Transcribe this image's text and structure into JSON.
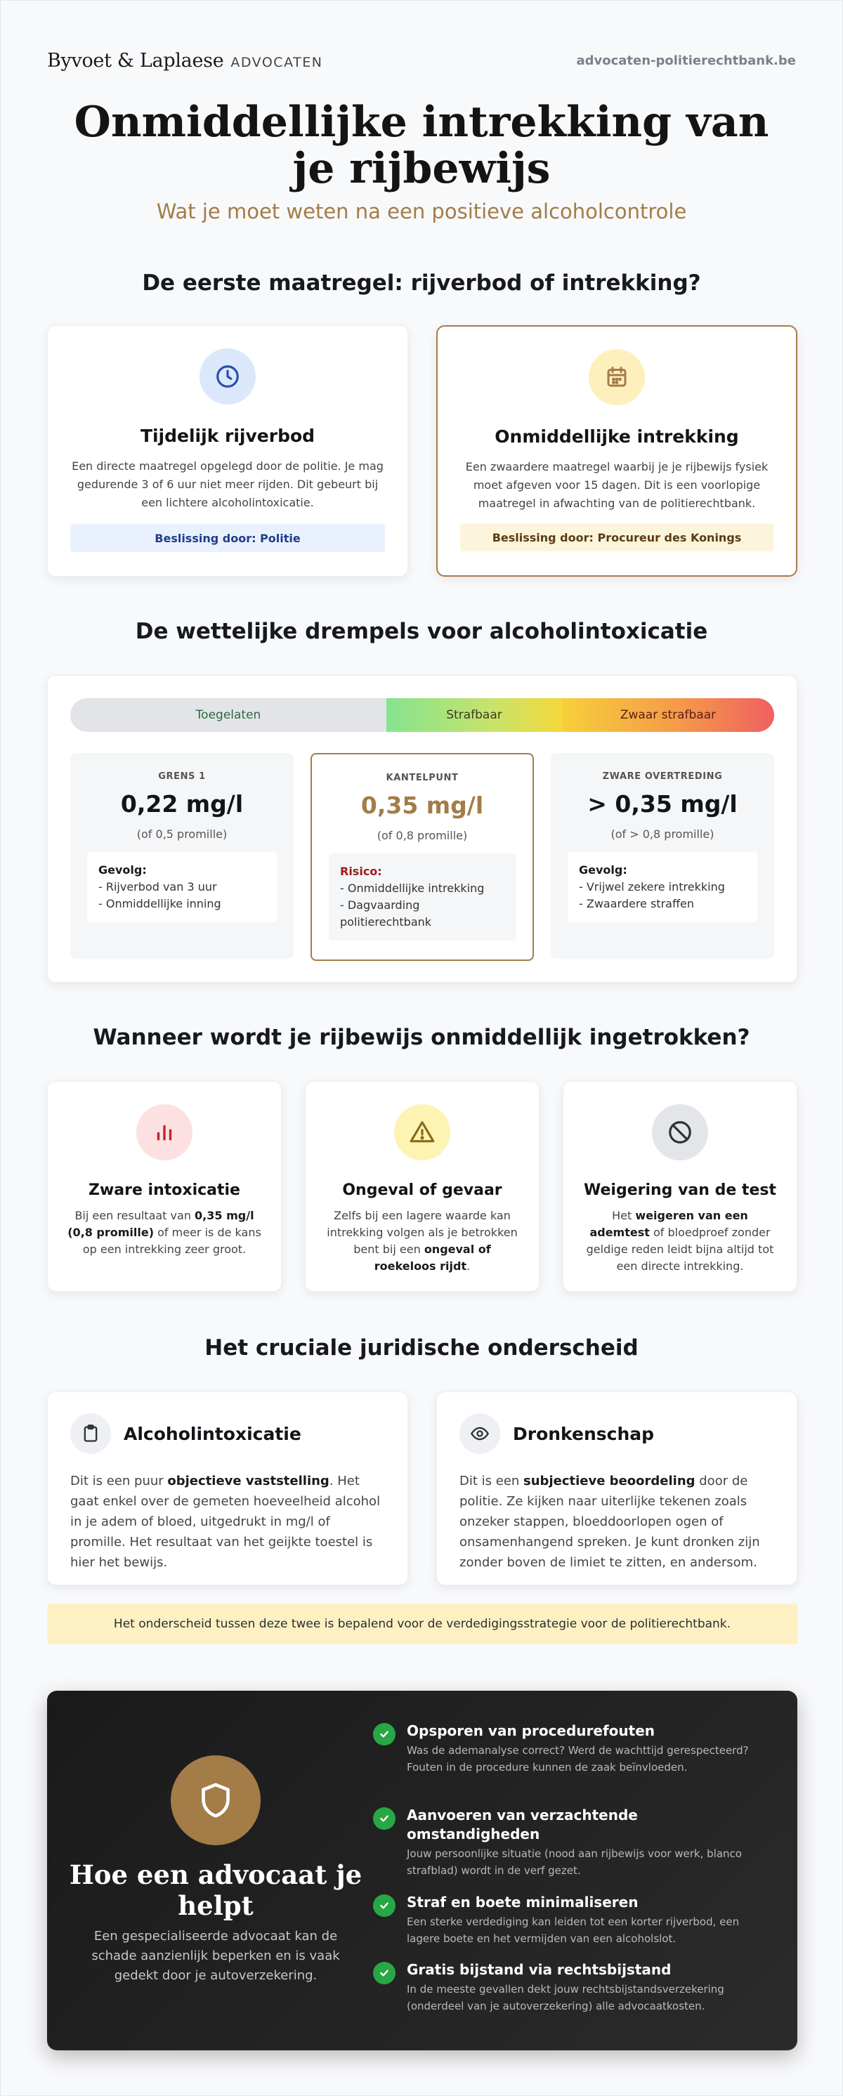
{
  "header": {
    "brand_name": "Byvoet & Laplaese",
    "brand_sub": "ADVOCATEN",
    "site_link": "advocaten-politierechtbank.be"
  },
  "hero": {
    "title": "Onmiddellijke intrekking van je rijbewijs",
    "subtitle": "Wat je moet weten na een positieve alcoholcontrole"
  },
  "measures": {
    "title": "De eerste maatregel: rijverbod of intrekking?",
    "cards": [
      {
        "icon": "clock-icon",
        "title": "Tijdelijk rijverbod",
        "text": "Een directe maatregel opgelegd door de politie. Je mag gedurende 3 of 6 uur niet meer rijden. Dit gebeurt bij een lichtere alcoholintoxicatie.",
        "decision": "Beslissing door: Politie"
      },
      {
        "icon": "calendar-icon",
        "title": "Onmiddellijke intrekking",
        "text": "Een zwaardere maatregel waarbij je je rijbewijs fysiek moet afgeven voor 15 dagen. Dit is een voorlopige maatregel in afwachting van de politierechtbank.",
        "decision": "Beslissing door: Procureur des Konings"
      }
    ]
  },
  "thresholds": {
    "title": "De wettelijke drempels voor alcoholintoxicatie",
    "scale": [
      "Toegelaten",
      "Strafbaar",
      "Zwaar strafbaar"
    ],
    "boxes": [
      {
        "label": "GRENS 1",
        "value": "0,22 mg/l",
        "promille": "(of 0,5 promille)",
        "note_title": "Gevolg:",
        "note_lines": [
          "- Rijverbod van 3 uur",
          "- Onmiddellijke inning"
        ]
      },
      {
        "label": "KANTELPUNT",
        "value": "0,35 mg/l",
        "promille": "(of 0,8 promille)",
        "note_title": "Risico:",
        "note_lines": [
          "- Onmiddellijke intrekking",
          "- Dagvaarding politierechtbank"
        ]
      },
      {
        "label": "ZWARE OVERTREDING",
        "value": "> 0,35 mg/l",
        "promille": "(of > 0,8 promille)",
        "note_title": "Gevolg:",
        "note_lines": [
          "- Vrijwel zekere intrekking",
          "- Zwaardere straffen"
        ]
      }
    ]
  },
  "reasons": {
    "title": "Wanneer wordt je rijbewijs onmiddellijk ingetrokken?",
    "cards": [
      {
        "icon": "bar-chart-icon",
        "title": "Zware intoxicatie",
        "t1": "Bij een resultaat van ",
        "b1": "0,35 mg/l (0,8 promille)",
        "t2": " of meer is de kans op een intrekking zeer groot."
      },
      {
        "icon": "warning-icon",
        "title": "Ongeval of gevaar",
        "t1": "Zelfs bij een lagere waarde kan intrekking volgen als je betrokken bent bij een ",
        "b1": "ongeval of roekeloos rijdt",
        "t2": "."
      },
      {
        "icon": "prohibited-icon",
        "title": "Weigering van de test",
        "t1": "Het ",
        "b1": "weigeren van een ademtest",
        "t2": " of bloedproef zonder geldige reden leidt bijna altijd tot een directe intrekking."
      }
    ]
  },
  "distinction": {
    "title": "Het cruciale juridische onderscheid",
    "cards": [
      {
        "icon": "clipboard-icon",
        "title": "Alcoholintoxicatie",
        "t1": "Dit is een puur ",
        "b1": "objectieve vaststelling",
        "t2": ". Het gaat enkel over de gemeten hoeveelheid alcohol in je adem of bloed, uitgedrukt in mg/l of promille. Het resultaat van het geijkte toestel is hier het bewijs."
      },
      {
        "icon": "eye-icon",
        "title": "Dronkenschap",
        "t1": "Dit is een ",
        "b1": "subjectieve beoordeling",
        "t2": " door de politie. Ze kijken naar uiterlijke tekenen zoals onzeker stappen, bloeddoorlopen ogen of onsamenhangend spreken. Je kunt dronken zijn zonder boven de limiet te zitten, en andersom."
      }
    ],
    "notice": "Het onderscheid tussen deze twee is bepalend voor de verdedigingsstrategie voor de politierechtbank."
  },
  "lawyer": {
    "icon": "shield-icon",
    "title": "Hoe een advocaat je helpt",
    "text": "Een gespecialiseerde advocaat kan de schade aanzienlijk beperken en is vaak gedekt door je autoverzekering.",
    "points": [
      {
        "title": "Opsporen van procedurefouten",
        "text": "Was de ademanalyse correct? Werd de wachttijd gerespecteerd? Fouten in de procedure kunnen de zaak beïnvloeden."
      },
      {
        "title": "Aanvoeren van verzachtende omstandigheden",
        "text": "Jouw persoonlijke situatie (nood aan rijbewijs voor werk, blanco strafblad) wordt in de verf gezet."
      },
      {
        "title": "Straf en boete minimaliseren",
        "text": "Een sterke verdediging kan leiden tot een korter rijverbod, een lagere boete en het vermijden van een alcoholslot."
      },
      {
        "title": "Gratis bijstand via rechtsbijstand",
        "text": "In de meeste gevallen dekt jouw rechtsbijstandsverzekering (onderdeel van je autoverzekering) alle advocaatkosten."
      }
    ]
  }
}
